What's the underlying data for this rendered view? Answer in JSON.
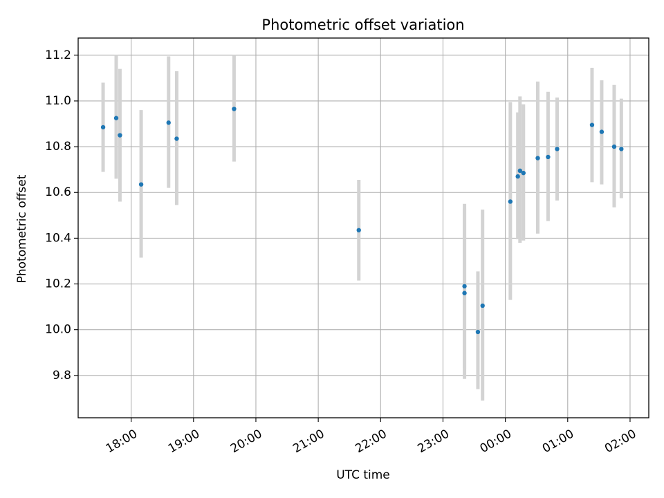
{
  "chart_data": {
    "type": "scatter",
    "title": "Photometric offset variation",
    "xlabel": "UTC time",
    "ylabel": "Photometric offset",
    "grid": true,
    "x_unit": "hours since 00:00 UTC (negative = previous day)",
    "xlim": [
      -6.85,
      2.3
    ],
    "ylim": [
      9.615,
      11.275
    ],
    "x_ticks": [
      {
        "value": -6.0,
        "label": "18:00"
      },
      {
        "value": -5.0,
        "label": "19:00"
      },
      {
        "value": -4.0,
        "label": "20:00"
      },
      {
        "value": -3.0,
        "label": "21:00"
      },
      {
        "value": -2.0,
        "label": "22:00"
      },
      {
        "value": -1.0,
        "label": "23:00"
      },
      {
        "value": 0.0,
        "label": "00:00"
      },
      {
        "value": 1.0,
        "label": "01:00"
      },
      {
        "value": 2.0,
        "label": "02:00"
      }
    ],
    "y_ticks": [
      {
        "value": 9.8,
        "label": "9.8"
      },
      {
        "value": 10.0,
        "label": "10.0"
      },
      {
        "value": 10.2,
        "label": "10.2"
      },
      {
        "value": 10.4,
        "label": "10.4"
      },
      {
        "value": 10.6,
        "label": "10.6"
      },
      {
        "value": 10.8,
        "label": "10.8"
      },
      {
        "value": 11.0,
        "label": "11.0"
      },
      {
        "value": 11.2,
        "label": "11.2"
      }
    ],
    "marker_color": "#1f77b4",
    "errorbar_color": "#d3d3d3",
    "points": [
      {
        "x": -6.45,
        "y": 10.885,
        "err_low": 10.69,
        "err_high": 11.08
      },
      {
        "x": -6.24,
        "y": 10.925,
        "err_low": 10.66,
        "err_high": 11.2
      },
      {
        "x": -6.18,
        "y": 10.85,
        "err_low": 10.56,
        "err_high": 11.14
      },
      {
        "x": -5.84,
        "y": 10.635,
        "err_low": 10.315,
        "err_high": 10.96
      },
      {
        "x": -5.4,
        "y": 10.905,
        "err_low": 10.62,
        "err_high": 11.195
      },
      {
        "x": -5.27,
        "y": 10.835,
        "err_low": 10.545,
        "err_high": 11.13
      },
      {
        "x": -4.35,
        "y": 10.965,
        "err_low": 10.735,
        "err_high": 11.2
      },
      {
        "x": -2.35,
        "y": 10.435,
        "err_low": 10.215,
        "err_high": 10.655
      },
      {
        "x": -0.655,
        "y": 10.19,
        "err_low": 9.83,
        "err_high": 10.55
      },
      {
        "x": -0.655,
        "y": 10.16,
        "err_low": 9.785,
        "err_high": 10.53
      },
      {
        "x": -0.44,
        "y": 9.99,
        "err_low": 9.74,
        "err_high": 10.255
      },
      {
        "x": -0.365,
        "y": 10.105,
        "err_low": 9.69,
        "err_high": 10.525
      },
      {
        "x": 0.08,
        "y": 10.56,
        "err_low": 10.13,
        "err_high": 10.995
      },
      {
        "x": 0.2,
        "y": 10.67,
        "err_low": 10.395,
        "err_high": 10.95
      },
      {
        "x": 0.235,
        "y": 10.695,
        "err_low": 10.38,
        "err_high": 11.02
      },
      {
        "x": 0.29,
        "y": 10.685,
        "err_low": 10.39,
        "err_high": 10.985
      },
      {
        "x": 0.52,
        "y": 10.75,
        "err_low": 10.42,
        "err_high": 11.085
      },
      {
        "x": 0.685,
        "y": 10.755,
        "err_low": 10.475,
        "err_high": 11.04
      },
      {
        "x": 0.83,
        "y": 10.79,
        "err_low": 10.565,
        "err_high": 11.015
      },
      {
        "x": 1.39,
        "y": 10.895,
        "err_low": 10.645,
        "err_high": 11.145
      },
      {
        "x": 1.545,
        "y": 10.865,
        "err_low": 10.635,
        "err_high": 11.09
      },
      {
        "x": 1.745,
        "y": 10.8,
        "err_low": 10.535,
        "err_high": 11.07
      },
      {
        "x": 1.86,
        "y": 10.79,
        "err_low": 10.575,
        "err_high": 11.01
      }
    ]
  }
}
